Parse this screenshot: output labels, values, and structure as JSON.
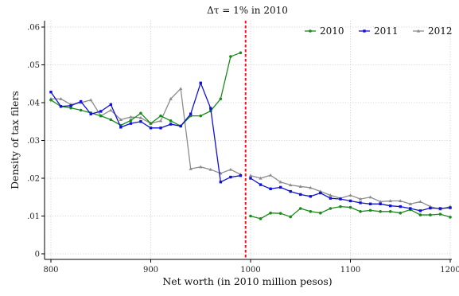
{
  "chart_data": {
    "type": "line",
    "title": "Δτ = 1% in 2010",
    "xlabel": "Net worth (in 2010 million pesos)",
    "ylabel": "Density of tax filers",
    "xlim": [
      800,
      1200
    ],
    "ylim": [
      0,
      0.06
    ],
    "xticks": [
      800,
      900,
      1000,
      1100,
      1200
    ],
    "xtick_labels": [
      "800",
      "900",
      "1000",
      "1100",
      "1200"
    ],
    "yticks": [
      0,
      0.01,
      0.02,
      0.03,
      0.04,
      0.05,
      0.06
    ],
    "ytick_labels": [
      "0",
      ".01",
      ".02",
      ".03",
      ".04",
      ".05",
      ".06"
    ],
    "grid": true,
    "legend_position": "top-right",
    "threshold": {
      "x": 995,
      "color": "#e8161b"
    },
    "series": [
      {
        "name": "2010",
        "color": "#1a8a1a",
        "x": [
          800,
          810,
          820,
          830,
          840,
          850,
          860,
          870,
          880,
          890,
          900,
          910,
          920,
          930,
          940,
          950,
          960,
          970,
          980,
          990
        ],
        "y": [
          0.0407,
          0.039,
          0.0386,
          0.038,
          0.0373,
          0.0365,
          0.0355,
          0.034,
          0.0353,
          0.0372,
          0.0345,
          0.0365,
          0.0352,
          0.0338,
          0.0365,
          0.0365,
          0.0378,
          0.041,
          0.0522,
          0.0532
        ]
      },
      {
        "name": "2010",
        "color": "#1a8a1a",
        "x": [
          1000,
          1010,
          1020,
          1030,
          1040,
          1050,
          1060,
          1070,
          1080,
          1090,
          1100,
          1110,
          1120,
          1130,
          1140,
          1150,
          1160,
          1170,
          1180,
          1190,
          1200
        ],
        "y": [
          0.01,
          0.0093,
          0.0108,
          0.0107,
          0.0098,
          0.012,
          0.0112,
          0.0108,
          0.012,
          0.0125,
          0.0123,
          0.0112,
          0.0115,
          0.0112,
          0.0112,
          0.0108,
          0.0117,
          0.0103,
          0.0103,
          0.0105,
          0.0097
        ]
      },
      {
        "name": "2011",
        "color": "#1010d8",
        "x": [
          800,
          810,
          820,
          830,
          840,
          850,
          860,
          870,
          880,
          890,
          900,
          910,
          920,
          930,
          940,
          950,
          960,
          970,
          980,
          990
        ],
        "y": [
          0.0428,
          0.039,
          0.0392,
          0.0403,
          0.037,
          0.0377,
          0.0395,
          0.0335,
          0.0345,
          0.035,
          0.0333,
          0.0333,
          0.0343,
          0.0338,
          0.037,
          0.0452,
          0.0385,
          0.019,
          0.0203,
          0.0207
        ]
      },
      {
        "name": "2011",
        "color": "#1010d8",
        "x": [
          1000,
          1010,
          1020,
          1030,
          1040,
          1050,
          1060,
          1070,
          1080,
          1090,
          1100,
          1110,
          1120,
          1130,
          1140,
          1150,
          1160,
          1170,
          1180,
          1190,
          1200
        ],
        "y": [
          0.02,
          0.0183,
          0.0172,
          0.0176,
          0.0165,
          0.0157,
          0.0152,
          0.0161,
          0.0147,
          0.0145,
          0.014,
          0.0135,
          0.0132,
          0.0132,
          0.0127,
          0.0125,
          0.012,
          0.0114,
          0.0121,
          0.012,
          0.0122
        ]
      },
      {
        "name": "2012",
        "color": "#8c8c8c",
        "x": [
          800,
          810,
          820,
          830,
          840,
          850,
          860,
          870,
          880,
          890,
          900,
          910,
          920,
          930,
          940,
          950,
          960,
          970,
          980,
          990
        ],
        "y": [
          0.041,
          0.041,
          0.0395,
          0.04,
          0.0407,
          0.0365,
          0.038,
          0.0355,
          0.0362,
          0.036,
          0.0345,
          0.0352,
          0.041,
          0.0437,
          0.0225,
          0.023,
          0.0223,
          0.0213,
          0.0223,
          0.021
        ]
      },
      {
        "name": "2012",
        "color": "#8c8c8c",
        "x": [
          1000,
          1010,
          1020,
          1030,
          1040,
          1050,
          1060,
          1070,
          1080,
          1090,
          1100,
          1110,
          1120,
          1130,
          1140,
          1150,
          1160,
          1170,
          1180,
          1190,
          1200
        ],
        "y": [
          0.0207,
          0.02,
          0.0208,
          0.019,
          0.0182,
          0.0178,
          0.0175,
          0.0165,
          0.0155,
          0.0147,
          0.0155,
          0.0145,
          0.015,
          0.0138,
          0.014,
          0.014,
          0.0132,
          0.0138,
          0.0125,
          0.0118,
          0.0125
        ]
      }
    ],
    "legend": [
      {
        "name": "2010",
        "color": "#1a8a1a"
      },
      {
        "name": "2011",
        "color": "#1010d8"
      },
      {
        "name": "2012",
        "color": "#8c8c8c"
      }
    ]
  }
}
